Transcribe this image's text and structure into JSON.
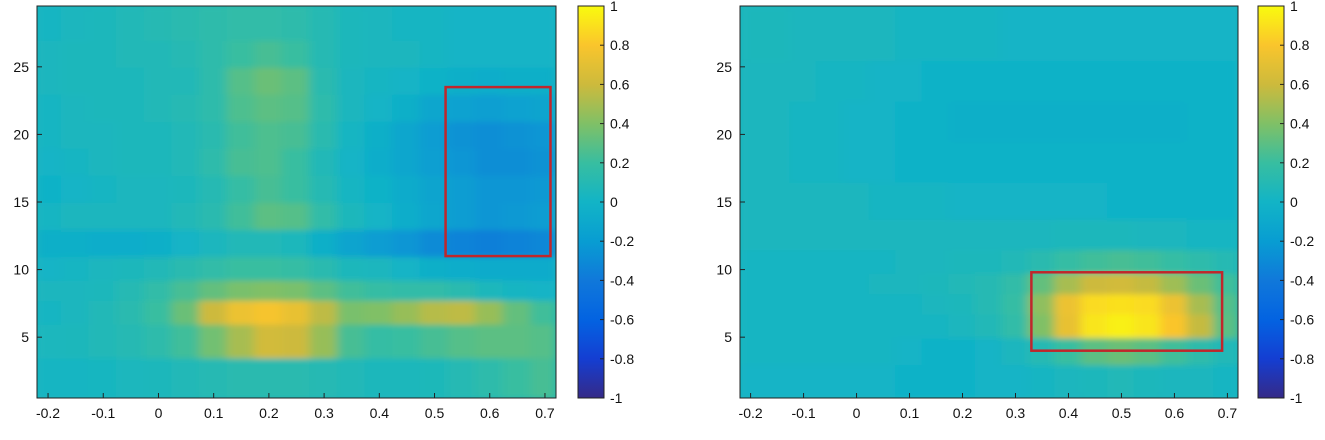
{
  "chart_data": [
    {
      "type": "heatmap",
      "title": "",
      "xlabel": "",
      "ylabel": "",
      "xlim": [
        -0.22,
        0.72
      ],
      "ylim": [
        0.5,
        29.5
      ],
      "xticks": [
        -0.2,
        -0.1,
        0,
        0.1,
        0.2,
        0.3,
        0.4,
        0.5,
        0.6,
        0.7
      ],
      "xtick_labels": [
        "-0.2",
        "-0.1",
        "0",
        "0.1",
        "0.2",
        "0.3",
        "0.4",
        "0.5",
        "0.6",
        "0.7"
      ],
      "yticks": [
        5,
        10,
        15,
        20,
        25
      ],
      "ytick_labels": [
        "5",
        "10",
        "15",
        "20",
        "25"
      ],
      "colormap": "parula",
      "clim": [
        -1,
        1
      ],
      "colorbar_ticks": [
        1,
        0.8,
        0.6,
        0.4,
        0.2,
        0,
        -0.2,
        -0.4,
        -0.6,
        -0.8,
        -1
      ],
      "colorbar_labels": [
        "1",
        "0.8",
        "0.6",
        "0.4",
        "0.2",
        "0",
        "-0.2",
        "-0.4",
        "-0.6",
        "-0.8",
        "-1"
      ],
      "highlight_box": {
        "x": [
          0.52,
          0.71
        ],
        "y": [
          11,
          23.5
        ],
        "color": "#c0262b"
      },
      "x": [
        -0.2,
        -0.15,
        -0.1,
        -0.05,
        0,
        0.05,
        0.1,
        0.15,
        0.2,
        0.25,
        0.3,
        0.35,
        0.4,
        0.45,
        0.5,
        0.55,
        0.6,
        0.65,
        0.7
      ],
      "y": [
        2,
        5,
        7,
        8.5,
        10,
        12,
        14,
        16,
        18,
        20,
        22,
        24,
        26,
        28
      ],
      "z": [
        [
          0.02,
          0.02,
          0.03,
          0.05,
          0.06,
          0.08,
          0.1,
          0.12,
          0.12,
          0.12,
          0.1,
          0.08,
          0.06,
          0.06,
          0.07,
          0.1,
          0.14,
          0.2,
          0.24
        ],
        [
          0.05,
          0.06,
          0.08,
          0.1,
          0.14,
          0.22,
          0.36,
          0.5,
          0.62,
          0.6,
          0.46,
          0.24,
          0.18,
          0.2,
          0.24,
          0.28,
          0.3,
          0.3,
          0.28
        ],
        [
          0.02,
          0.04,
          0.08,
          0.12,
          0.2,
          0.34,
          0.6,
          0.74,
          0.78,
          0.72,
          0.56,
          0.38,
          0.4,
          0.46,
          0.54,
          0.56,
          0.46,
          0.32,
          0.22
        ],
        [
          0.04,
          0.04,
          0.06,
          0.1,
          0.16,
          0.24,
          0.32,
          0.38,
          0.4,
          0.38,
          0.3,
          0.22,
          0.18,
          0.16,
          0.16,
          0.12,
          0.06,
          0.02,
          0.0
        ],
        [
          0.0,
          0.02,
          0.04,
          0.06,
          0.08,
          0.12,
          0.16,
          0.2,
          0.2,
          0.18,
          0.12,
          0.06,
          0.04,
          0.0,
          -0.04,
          -0.06,
          -0.08,
          -0.08,
          -0.08
        ],
        [
          -0.04,
          -0.04,
          -0.06,
          -0.06,
          -0.04,
          0.0,
          0.04,
          0.08,
          0.08,
          0.06,
          -0.04,
          -0.14,
          -0.2,
          -0.24,
          -0.3,
          -0.34,
          -0.36,
          -0.34,
          -0.32
        ],
        [
          0.02,
          0.04,
          0.04,
          0.04,
          0.04,
          0.08,
          0.12,
          0.22,
          0.3,
          0.28,
          0.16,
          0.06,
          0.0,
          -0.06,
          -0.12,
          -0.2,
          -0.24,
          -0.22,
          -0.2
        ],
        [
          -0.02,
          0.0,
          0.02,
          0.04,
          0.04,
          0.06,
          0.1,
          0.18,
          0.24,
          0.2,
          0.1,
          0.02,
          -0.02,
          -0.08,
          -0.14,
          -0.2,
          -0.24,
          -0.24,
          -0.22
        ],
        [
          0.0,
          0.02,
          0.04,
          0.06,
          0.06,
          0.08,
          0.14,
          0.24,
          0.26,
          0.2,
          0.08,
          0.0,
          -0.06,
          -0.12,
          -0.18,
          -0.24,
          -0.28,
          -0.28,
          -0.26
        ],
        [
          0.02,
          0.04,
          0.04,
          0.06,
          0.06,
          0.08,
          0.12,
          0.22,
          0.26,
          0.24,
          0.12,
          0.02,
          -0.04,
          -0.12,
          -0.2,
          -0.26,
          -0.28,
          -0.26,
          -0.24
        ],
        [
          0.02,
          0.04,
          0.06,
          0.06,
          0.08,
          0.1,
          0.14,
          0.26,
          0.3,
          0.28,
          0.14,
          0.04,
          0.0,
          -0.04,
          -0.12,
          -0.16,
          -0.18,
          -0.16,
          -0.14
        ],
        [
          0.04,
          0.06,
          0.06,
          0.06,
          0.08,
          0.08,
          0.14,
          0.28,
          0.34,
          0.3,
          0.12,
          0.04,
          0.02,
          0.0,
          -0.02,
          -0.04,
          -0.06,
          -0.04,
          -0.04
        ],
        [
          0.04,
          0.06,
          0.06,
          0.08,
          0.08,
          0.1,
          0.14,
          0.2,
          0.24,
          0.2,
          0.1,
          0.06,
          0.04,
          0.04,
          0.02,
          0.0,
          0.0,
          0.0,
          0.0
        ],
        [
          0.02,
          0.04,
          0.06,
          0.08,
          0.1,
          0.12,
          0.14,
          0.16,
          0.16,
          0.14,
          0.1,
          0.06,
          0.04,
          0.02,
          0.02,
          0.0,
          0.0,
          0.0,
          0.0
        ]
      ]
    },
    {
      "type": "heatmap",
      "title": "",
      "xlabel": "",
      "ylabel": "",
      "xlim": [
        -0.22,
        0.72
      ],
      "ylim": [
        0.5,
        29.5
      ],
      "xticks": [
        -0.2,
        -0.1,
        0,
        0.1,
        0.2,
        0.3,
        0.4,
        0.5,
        0.6,
        0.7
      ],
      "xtick_labels": [
        "-0.2",
        "-0.1",
        "0",
        "0.1",
        "0.2",
        "0.3",
        "0.4",
        "0.5",
        "0.6",
        "0.7"
      ],
      "yticks": [
        5,
        10,
        15,
        20,
        25
      ],
      "ytick_labels": [
        "5",
        "10",
        "15",
        "20",
        "25"
      ],
      "colormap": "parula",
      "clim": [
        -1,
        1
      ],
      "colorbar_ticks": [
        1,
        0.8,
        0.6,
        0.4,
        0.2,
        0,
        -0.2,
        -0.4,
        -0.6,
        -0.8,
        -1
      ],
      "colorbar_labels": [
        "1",
        "0.8",
        "0.6",
        "0.4",
        "0.2",
        "0",
        "-0.2",
        "-0.4",
        "-0.6",
        "-0.8",
        "-1"
      ],
      "highlight_box": {
        "x": [
          0.33,
          0.69
        ],
        "y": [
          4,
          9.8
        ],
        "color": "#c0262b"
      },
      "x": [
        -0.2,
        -0.15,
        -0.1,
        -0.05,
        0,
        0.05,
        0.1,
        0.15,
        0.2,
        0.25,
        0.3,
        0.35,
        0.4,
        0.45,
        0.5,
        0.55,
        0.6,
        0.65,
        0.7
      ],
      "y": [
        2,
        4,
        6,
        7.5,
        9,
        10.5,
        12.5,
        15,
        18,
        21,
        24,
        27
      ],
      "z": [
        [
          0.0,
          0.0,
          0.0,
          0.0,
          0.0,
          0.0,
          -0.02,
          -0.02,
          -0.02,
          0.0,
          0.0,
          0.02,
          0.04,
          0.06,
          0.08,
          0.06,
          0.04,
          0.04,
          0.02
        ],
        [
          0.02,
          0.02,
          0.02,
          0.02,
          0.02,
          0.02,
          0.0,
          -0.02,
          -0.02,
          0.0,
          0.04,
          0.1,
          0.2,
          0.3,
          0.34,
          0.3,
          0.22,
          0.14,
          0.08
        ],
        [
          0.02,
          0.02,
          0.02,
          0.02,
          0.02,
          0.02,
          0.02,
          0.02,
          0.04,
          0.08,
          0.16,
          0.4,
          0.72,
          0.92,
          0.96,
          0.92,
          0.8,
          0.58,
          0.3
        ],
        [
          0.02,
          0.02,
          0.02,
          0.02,
          0.02,
          0.02,
          0.02,
          0.04,
          0.06,
          0.1,
          0.18,
          0.44,
          0.74,
          0.88,
          0.9,
          0.88,
          0.74,
          0.5,
          0.28
        ],
        [
          0.02,
          0.02,
          0.02,
          0.02,
          0.02,
          0.04,
          0.04,
          0.06,
          0.08,
          0.1,
          0.16,
          0.32,
          0.5,
          0.6,
          0.62,
          0.58,
          0.48,
          0.34,
          0.22
        ],
        [
          0.02,
          0.02,
          0.02,
          0.02,
          0.02,
          0.02,
          0.04,
          0.04,
          0.06,
          0.06,
          0.08,
          0.12,
          0.18,
          0.22,
          0.24,
          0.22,
          0.18,
          0.14,
          0.1
        ],
        [
          0.04,
          0.04,
          0.04,
          0.04,
          0.04,
          0.04,
          0.04,
          0.04,
          0.04,
          0.04,
          0.04,
          0.04,
          0.06,
          0.06,
          0.06,
          0.04,
          0.04,
          0.02,
          0.02
        ],
        [
          0.04,
          0.04,
          0.04,
          0.04,
          0.04,
          0.02,
          0.02,
          0.02,
          0.0,
          0.0,
          0.0,
          0.0,
          0.0,
          0.0,
          -0.02,
          -0.02,
          -0.02,
          -0.02,
          -0.02
        ],
        [
          0.04,
          0.04,
          0.02,
          0.02,
          0.0,
          0.0,
          -0.02,
          -0.02,
          -0.02,
          -0.02,
          -0.02,
          -0.02,
          -0.02,
          -0.02,
          -0.02,
          -0.02,
          -0.02,
          -0.02,
          -0.02
        ],
        [
          0.04,
          0.04,
          0.02,
          0.02,
          0.0,
          0.0,
          -0.02,
          -0.02,
          -0.04,
          -0.04,
          -0.04,
          -0.04,
          -0.04,
          -0.04,
          -0.04,
          -0.04,
          -0.04,
          -0.02,
          -0.02
        ],
        [
          0.04,
          0.04,
          0.04,
          0.02,
          0.02,
          0.0,
          0.0,
          -0.02,
          -0.02,
          -0.02,
          -0.02,
          -0.02,
          -0.02,
          -0.02,
          -0.02,
          -0.02,
          -0.02,
          -0.02,
          -0.02
        ],
        [
          0.06,
          0.06,
          0.04,
          0.04,
          0.04,
          0.04,
          0.02,
          0.02,
          0.02,
          0.02,
          0.0,
          0.0,
          0.0,
          0.0,
          0.0,
          0.0,
          0.0,
          0.0,
          0.0
        ]
      ]
    }
  ]
}
